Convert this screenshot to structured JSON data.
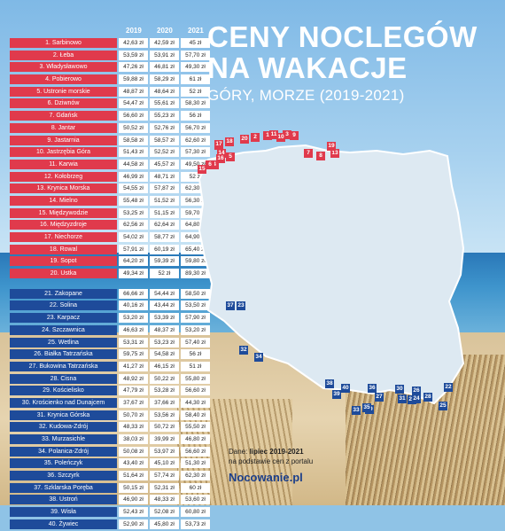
{
  "header": {
    "title_line1": "CENY NOCLEGÓW",
    "title_line2": "NA WAKACJE",
    "subtitle": "GÓRY, MORZE (2019-2021)"
  },
  "footer": {
    "source_prefix": "Dane: ",
    "source_strong": "lipiec 2019-2021",
    "source_line2": "na podstawie cen z portalu",
    "brand": "Nocowanie.pl"
  },
  "colors": {
    "sea_red": "#e03a4c",
    "mountain_blue": "#1e4b9a",
    "map_fill": "#dde9f2"
  },
  "chart_data": {
    "type": "table",
    "title": "CENY NOCLEGÓW NA WAKACJE",
    "subtitle": "GÓRY, MORZE (2019-2021)",
    "columns": [
      "2019",
      "2020",
      "2021"
    ],
    "groups": [
      {
        "rows": [
          {
            "name": "1. Sarbinowo",
            "values": [
              "42,63 zł",
              "42,59 zł",
              "45 zł"
            ]
          },
          {
            "name": "2. Łeba",
            "values": [
              "53,59 zł",
              "53,91 zł",
              "57,70 zł"
            ]
          },
          {
            "name": "3. Władysławowo",
            "values": [
              "47,26 zł",
              "46,81 zł",
              "49,30 zł"
            ]
          },
          {
            "name": "4. Pobierowo",
            "values": [
              "59,88 zł",
              "58,29 zł",
              "61 zł"
            ]
          },
          {
            "name": "5. Ustronie morskie",
            "values": [
              "48,87 zł",
              "48,64 zł",
              "52 zł"
            ]
          },
          {
            "name": "6. Dziwnów",
            "values": [
              "54,47 zł",
              "55,61 zł",
              "58,30 zł"
            ]
          },
          {
            "name": "7. Gdańsk",
            "values": [
              "56,60 zł",
              "55,23 zł",
              "56 zł"
            ]
          },
          {
            "name": "8. Jantar",
            "values": [
              "50,52 zł",
              "52,76 zł",
              "56,70 zł"
            ]
          },
          {
            "name": "9. Jastarnia",
            "values": [
              "58,58 zł",
              "58,57 zł",
              "62,60 zł"
            ]
          },
          {
            "name": "10. Jastrzębia Góra",
            "values": [
              "51,43 zł",
              "52,52 zł",
              "57,30 zł"
            ]
          },
          {
            "name": "11. Karwia",
            "values": [
              "44,58 zł",
              "45,57 zł",
              "49,50 zł"
            ]
          },
          {
            "name": "12. Kołobrzeg",
            "values": [
              "46,99 zł",
              "48,71 zł",
              "52 zł"
            ]
          },
          {
            "name": "13. Krynica Morska",
            "values": [
              "54,55 zł",
              "57,87 zł",
              "62,30 zł"
            ]
          },
          {
            "name": "14. Mielno",
            "values": [
              "55,48 zł",
              "51,52 zł",
              "56,30 zł"
            ]
          },
          {
            "name": "15. Międzywodzie",
            "values": [
              "53,25 zł",
              "51,15 zł",
              "59,70 zł"
            ]
          },
          {
            "name": "16. Międzyzdroje",
            "values": [
              "62,56 zł",
              "62,64 zł",
              "64,80 zł"
            ]
          },
          {
            "name": "17. Niechorze",
            "values": [
              "54,02 zł",
              "58,77 zł",
              "64,90 zł"
            ]
          },
          {
            "name": "18. Rowal",
            "values": [
              "57,91 zł",
              "60,19 zł",
              "65,40 zł"
            ]
          },
          {
            "name": "19. Sopot",
            "values": [
              "64,20 zł",
              "59,39 zł",
              "59,80 zł"
            ]
          },
          {
            "name": "20. Ustka",
            "values": [
              "49,34 zł",
              "52 zł",
              "89,30 zł"
            ]
          }
        ]
      },
      {
        "rows": [
          {
            "name": "21. Zakopane",
            "values": [
              "66,66 zł",
              "54,44 zł",
              "58,50 zł"
            ]
          },
          {
            "name": "22. Solina",
            "values": [
              "40,16 zł",
              "43,44 zł",
              "53,50 zł"
            ]
          },
          {
            "name": "23. Karpacz",
            "values": [
              "53,20 zł",
              "53,39 zł",
              "57,90 zł"
            ]
          },
          {
            "name": "24. Szczawnica",
            "values": [
              "46,63 zł",
              "48,37 zł",
              "53,20 zł"
            ]
          },
          {
            "name": "25. Wetlina",
            "values": [
              "53,31 zł",
              "53,23 zł",
              "57,40 zł"
            ]
          },
          {
            "name": "26. Białka Tatrzańska",
            "values": [
              "59,75 zł",
              "54,58 zł",
              "56 zł"
            ]
          },
          {
            "name": "27. Bukowina Tatrzańska",
            "values": [
              "41,27 zł",
              "46,15 zł",
              "51 zł"
            ]
          },
          {
            "name": "28. Cisna",
            "values": [
              "48,92 zł",
              "50,22 zł",
              "55,80 zł"
            ]
          },
          {
            "name": "29. Kościelisko",
            "values": [
              "47,79 zł",
              "53,28 zł",
              "56,60 zł"
            ]
          },
          {
            "name": "30. Krościenko nad Dunajcem",
            "values": [
              "37,67 zł",
              "37,66 zł",
              "44,30 zł"
            ]
          },
          {
            "name": "31. Krynica Górska",
            "values": [
              "50,70 zł",
              "53,56 zł",
              "58,40 zł"
            ]
          },
          {
            "name": "32. Kudowa-Zdrój",
            "values": [
              "48,33 zł",
              "50,72 zł",
              "55,50 zł"
            ]
          },
          {
            "name": "33. Murzasichle",
            "values": [
              "38,03 zł",
              "39,99 zł",
              "46,80 zł"
            ]
          },
          {
            "name": "34. Polanica-Zdrój",
            "values": [
              "50,08 zł",
              "53,97 zł",
              "56,60 zł"
            ]
          },
          {
            "name": "35. Poleńczyk",
            "values": [
              "43,40 zł",
              "45,10 zł",
              "51,30 zł"
            ]
          },
          {
            "name": "36. Szczyrk",
            "values": [
              "51,64 zł",
              "57,74 zł",
              "62,30 zł"
            ]
          },
          {
            "name": "37. Szklarska Poręba",
            "values": [
              "50,15 zł",
              "52,31 zł",
              "60 zł"
            ]
          },
          {
            "name": "38. Ustroń",
            "values": [
              "46,90 zł",
              "48,33 zł",
              "53,60 zł"
            ]
          },
          {
            "name": "39. Wisła",
            "values": [
              "52,43 zł",
              "52,08 zł",
              "60,80 zł"
            ]
          },
          {
            "name": "40. Żywiec",
            "values": [
              "52,90 zł",
              "45,80 zł",
              "53,73 zł"
            ]
          }
        ]
      }
    ],
    "map_markers": [
      {
        "label": "1",
        "group": 0
      },
      {
        "label": "2",
        "group": 0
      },
      {
        "label": "3",
        "group": 0
      },
      {
        "label": "4",
        "group": 0
      },
      {
        "label": "5",
        "group": 0
      },
      {
        "label": "6",
        "group": 0
      },
      {
        "label": "7",
        "group": 0
      },
      {
        "label": "8",
        "group": 0
      },
      {
        "label": "9",
        "group": 0
      },
      {
        "label": "10",
        "group": 0
      },
      {
        "label": "11",
        "group": 0
      },
      {
        "label": "12",
        "group": 0
      },
      {
        "label": "13",
        "group": 0
      },
      {
        "label": "14",
        "group": 0
      },
      {
        "label": "15",
        "group": 0
      },
      {
        "label": "16",
        "group": 0
      },
      {
        "label": "17",
        "group": 0
      },
      {
        "label": "18",
        "group": 0
      },
      {
        "label": "19",
        "group": 0
      },
      {
        "label": "20",
        "group": 0
      },
      {
        "label": "21",
        "group": 1
      },
      {
        "label": "22",
        "group": 1
      },
      {
        "label": "23",
        "group": 1
      },
      {
        "label": "24",
        "group": 1
      },
      {
        "label": "25",
        "group": 1
      },
      {
        "label": "26",
        "group": 1
      },
      {
        "label": "27",
        "group": 1
      },
      {
        "label": "28",
        "group": 1
      },
      {
        "label": "29",
        "group": 1
      },
      {
        "label": "30",
        "group": 1
      },
      {
        "label": "31",
        "group": 1
      },
      {
        "label": "32",
        "group": 1
      },
      {
        "label": "33",
        "group": 1
      },
      {
        "label": "34",
        "group": 1
      },
      {
        "label": "35",
        "group": 1
      },
      {
        "label": "36",
        "group": 1
      },
      {
        "label": "37",
        "group": 1
      },
      {
        "label": "38",
        "group": 1
      },
      {
        "label": "39",
        "group": 1
      },
      {
        "label": "40",
        "group": 1
      }
    ]
  }
}
